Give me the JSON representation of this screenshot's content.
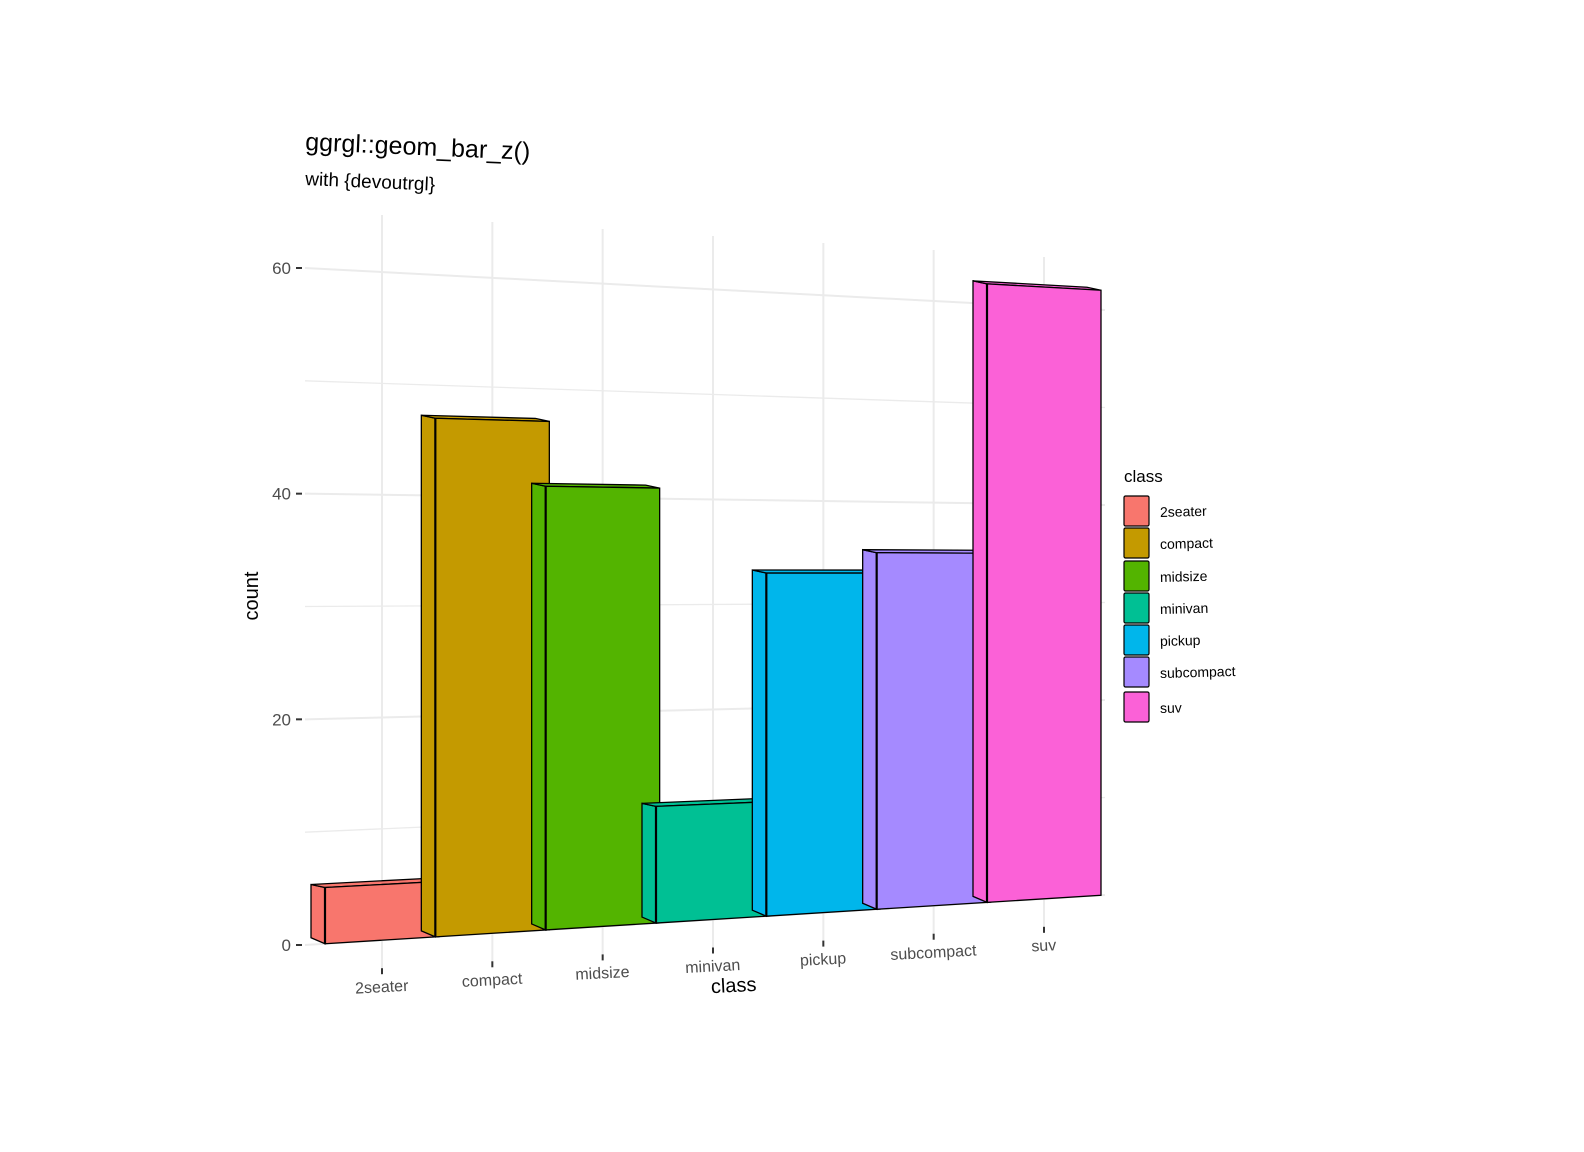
{
  "chart_data": {
    "type": "bar",
    "title": "ggrgl::geom_bar_z()",
    "subtitle": "with {devoutrgl}",
    "xlabel": "class",
    "ylabel": "count",
    "categories": [
      "2seater",
      "compact",
      "midsize",
      "minivan",
      "pickup",
      "subcompact",
      "suv"
    ],
    "values": [
      5,
      47,
      41,
      11,
      33,
      35,
      62
    ],
    "colors": [
      "#F8766D",
      "#C49A00",
      "#53B400",
      "#00C094",
      "#00B6EB",
      "#A58AFF",
      "#FB61D7"
    ],
    "ylim": [
      0,
      65
    ],
    "yticks": [
      "0",
      "20",
      "40",
      "60"
    ],
    "grid": true,
    "legend": {
      "title": "class",
      "position": "right",
      "items": [
        "2seater",
        "compact",
        "midsize",
        "minivan",
        "pickup",
        "subcompact",
        "suv"
      ]
    }
  }
}
